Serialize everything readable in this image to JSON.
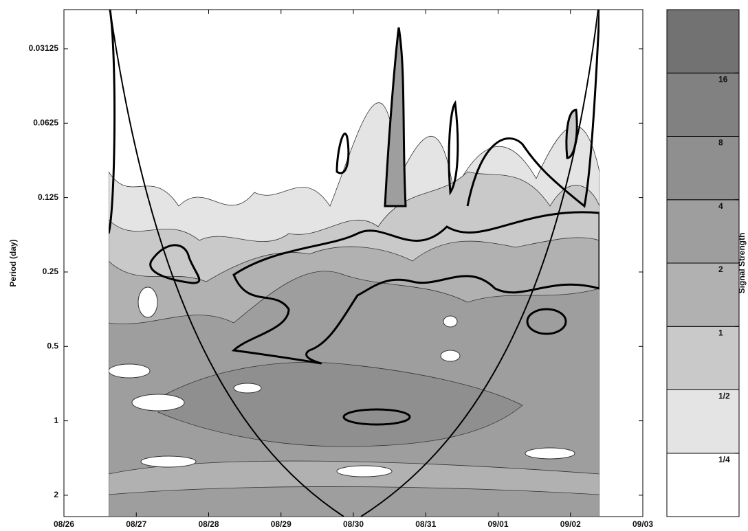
{
  "chart_data": {
    "type": "contour",
    "y_label": "Period (day)",
    "xlim": [
      0,
      8
    ],
    "xticks": [
      {
        "value": 0,
        "label": "08/26"
      },
      {
        "value": 1,
        "label": "08/27"
      },
      {
        "value": 2,
        "label": "08/28"
      },
      {
        "value": 3,
        "label": "08/29"
      },
      {
        "value": 4,
        "label": "08/30"
      },
      {
        "value": 5,
        "label": "08/31"
      },
      {
        "value": 6,
        "label": "09/01"
      },
      {
        "value": 7,
        "label": "09/02"
      },
      {
        "value": 8,
        "label": "09/03"
      }
    ],
    "ylim": [
      0.0217,
      2.44
    ],
    "y_log_scale": true,
    "yticks": [
      0.03125,
      0.0625,
      0.125,
      0.25,
      0.5,
      1,
      2
    ],
    "colorbar": {
      "label": "Signal Strength",
      "lim": [
        0.125,
        32
      ],
      "colors": [
        "#ffffff",
        "#e4e4e4",
        "#c9c9c9",
        "#b1b1b1",
        "#9e9e9e",
        "#8f8f8f",
        "#818181",
        "#727272"
      ],
      "ticks": [
        {
          "value": 0.25,
          "label": "1/4"
        },
        {
          "value": 0.5,
          "label": "1/2"
        },
        1,
        2,
        4,
        8,
        16
      ]
    }
  }
}
